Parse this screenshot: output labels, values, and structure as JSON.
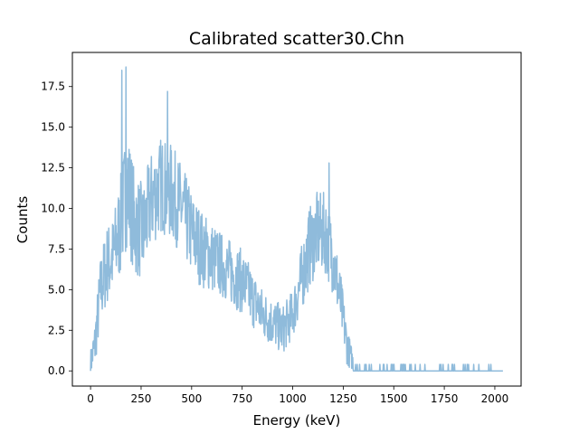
{
  "chart_data": {
    "type": "line",
    "title": "Calibrated scatter30.Chn",
    "xlabel": "Energy (keV)",
    "ylabel": "Counts",
    "xlim": [
      -90,
      2130
    ],
    "ylim": [
      -0.935,
      19.6
    ],
    "xticks": [
      0,
      250,
      500,
      750,
      1000,
      1250,
      1500,
      1750,
      2000
    ],
    "xtick_labels": [
      "0",
      "250",
      "500",
      "750",
      "1000",
      "1250",
      "1500",
      "1750",
      "2000"
    ],
    "yticks": [
      0,
      2.5,
      5,
      7.5,
      10,
      12.5,
      15,
      17.5
    ],
    "ytick_labels": [
      "0.0",
      "2.5",
      "5.0",
      "7.5",
      "10.0",
      "12.5",
      "15.0",
      "17.5"
    ],
    "grid": false,
    "line_color": "#8fbbdb",
    "series": [
      {
        "name": "scatter30",
        "envelope": {
          "x": [
            0,
            20,
            50,
            80,
            110,
            150,
            180,
            220,
            260,
            300,
            350,
            400,
            450,
            500,
            550,
            600,
            650,
            700,
            750,
            800,
            850,
            900,
            950,
            1000,
            1040,
            1080,
            1120,
            1160,
            1200,
            1240,
            1270,
            1300,
            1350,
            1400,
            1450,
            1500,
            1600,
            1700,
            1800,
            1900,
            2000,
            2040
          ],
          "y": [
            0.5,
            1.5,
            5.0,
            6.5,
            7.0,
            9.0,
            11.5,
            9.0,
            8.5,
            10.5,
            11.5,
            11.0,
            10.0,
            8.5,
            7.5,
            7.0,
            6.5,
            6.0,
            5.5,
            4.5,
            3.5,
            3.0,
            2.5,
            3.5,
            5.5,
            7.5,
            8.5,
            8.5,
            7.0,
            4.0,
            1.5,
            0.5,
            0.2,
            0.1,
            0.08,
            0.05,
            0.05,
            0.04,
            0.04,
            0.03,
            0.03,
            0.0
          ],
          "amp": [
            0.8,
            1.5,
            2.2,
            2.5,
            2.5,
            3.2,
            3.8,
            3.2,
            3.0,
            3.0,
            3.0,
            3.0,
            2.8,
            2.6,
            2.4,
            2.2,
            2.0,
            2.0,
            2.0,
            1.8,
            1.6,
            1.5,
            1.5,
            1.5,
            2.0,
            2.5,
            2.5,
            2.5,
            2.3,
            1.8,
            1.2,
            0.5,
            0.3,
            0.3,
            0.3,
            0.3,
            0.3,
            0.3,
            0.3,
            0.3,
            0.3,
            0.0
          ]
        },
        "samples": 1200,
        "peaks": [
          {
            "x": 155,
            "y": 18.5
          },
          {
            "x": 175,
            "y": 18.7
          },
          {
            "x": 380,
            "y": 17.2
          },
          {
            "x": 1180,
            "y": 12.8
          },
          {
            "x": 1550,
            "y": 0.4
          },
          {
            "x": 1870,
            "y": 0.4
          }
        ]
      }
    ]
  }
}
